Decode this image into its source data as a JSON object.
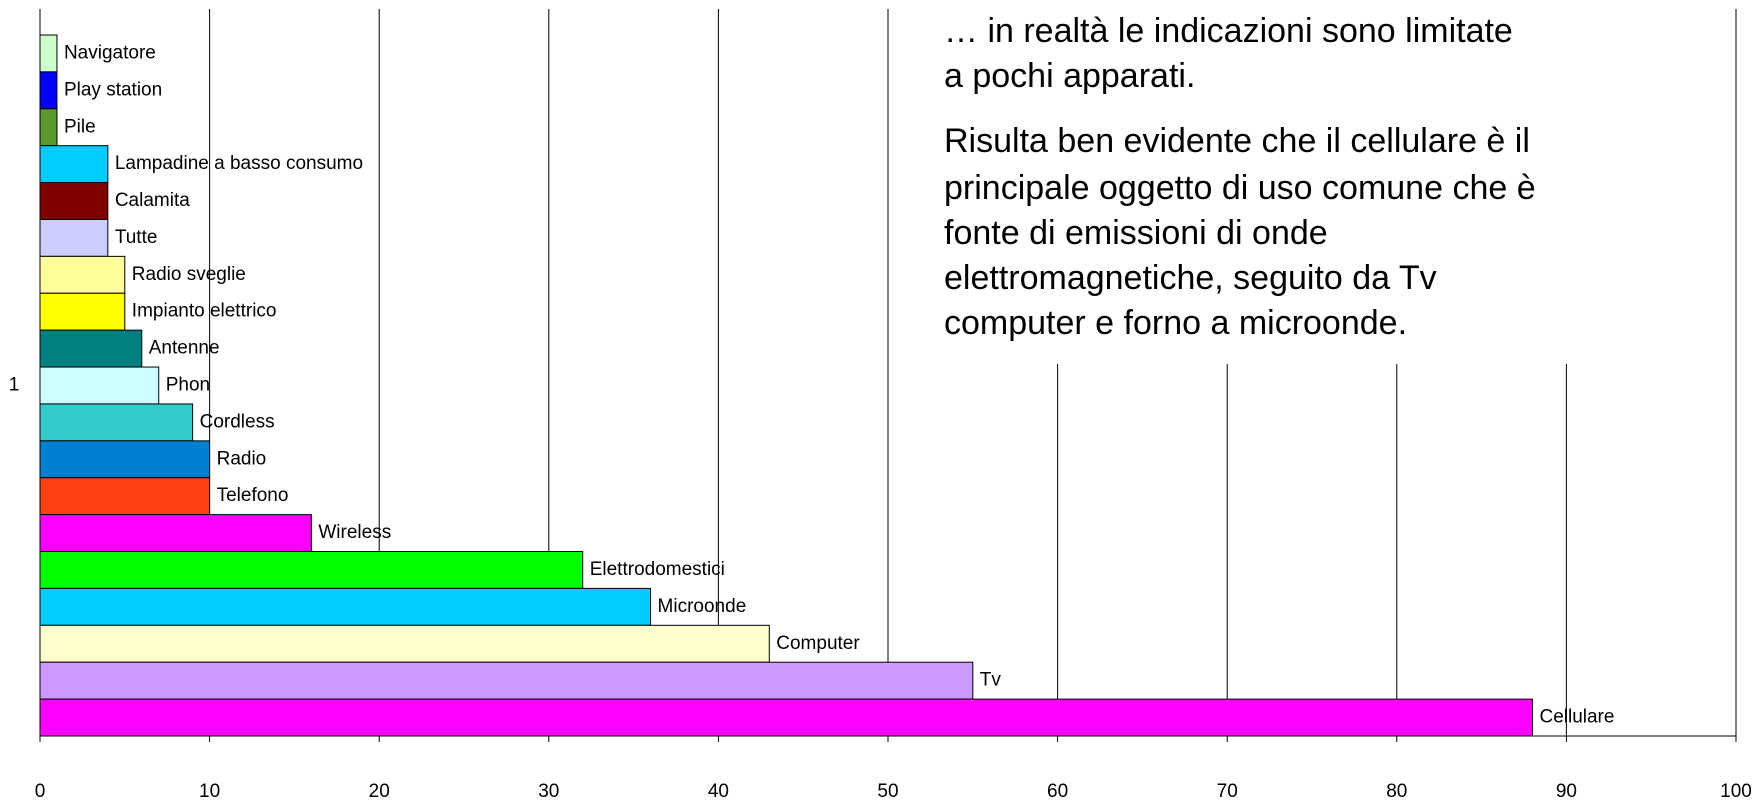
{
  "chart_data": {
    "type": "bar",
    "orientation": "horizontal",
    "categories": [
      "1"
    ],
    "series": [
      {
        "name": "Navigatore",
        "color": "#ccffcc",
        "values": [
          1
        ]
      },
      {
        "name": "Play station",
        "color": "#0000ff",
        "values": [
          1
        ]
      },
      {
        "name": "Pile",
        "color": "#5a9a2a",
        "values": [
          1
        ]
      },
      {
        "name": "Lampadine a basso consumo",
        "color": "#00ccff",
        "values": [
          4
        ]
      },
      {
        "name": "Calamita",
        "color": "#800000",
        "values": [
          4
        ]
      },
      {
        "name": "Tutte",
        "color": "#ccccff",
        "values": [
          4
        ]
      },
      {
        "name": "Radio sveglie",
        "color": "#ffff99",
        "values": [
          5
        ]
      },
      {
        "name": "Impianto elettrico",
        "color": "#ffff00",
        "values": [
          5
        ]
      },
      {
        "name": "Antenne",
        "color": "#008080",
        "values": [
          6
        ]
      },
      {
        "name": "Phon",
        "color": "#ccffff",
        "values": [
          7
        ]
      },
      {
        "name": "Cordless",
        "color": "#33cccc",
        "values": [
          9
        ]
      },
      {
        "name": "Radio",
        "color": "#0080d0",
        "values": [
          10
        ]
      },
      {
        "name": "Telefono",
        "color": "#ff4010",
        "values": [
          10
        ]
      },
      {
        "name": "Wireless",
        "color": "#ff00ff",
        "values": [
          16
        ]
      },
      {
        "name": "Elettrodomestici",
        "color": "#00ff00",
        "values": [
          32
        ]
      },
      {
        "name": "Microonde",
        "color": "#00ccff",
        "values": [
          36
        ]
      },
      {
        "name": "Computer",
        "color": "#ffffcc",
        "values": [
          43
        ]
      },
      {
        "name": "Tv",
        "color": "#cc99ff",
        "values": [
          55
        ]
      },
      {
        "name": "Cellulare",
        "color": "#ff00ff",
        "values": [
          88
        ]
      }
    ],
    "xlim": [
      0,
      100
    ],
    "xticks": [
      0,
      10,
      20,
      30,
      40,
      50,
      60,
      70,
      80,
      90,
      100
    ],
    "grid": true,
    "annotations": [
      [
        "… in realtà le indicazioni sono limitate",
        "a pochi apparati."
      ],
      [
        "Risulta ben evidente che il cellulare è il",
        "principale oggetto di uso comune che è",
        "fonte di emissioni di onde",
        "elettromagnetiche, seguito da Tv",
        "computer e forno a microonde."
      ]
    ]
  }
}
